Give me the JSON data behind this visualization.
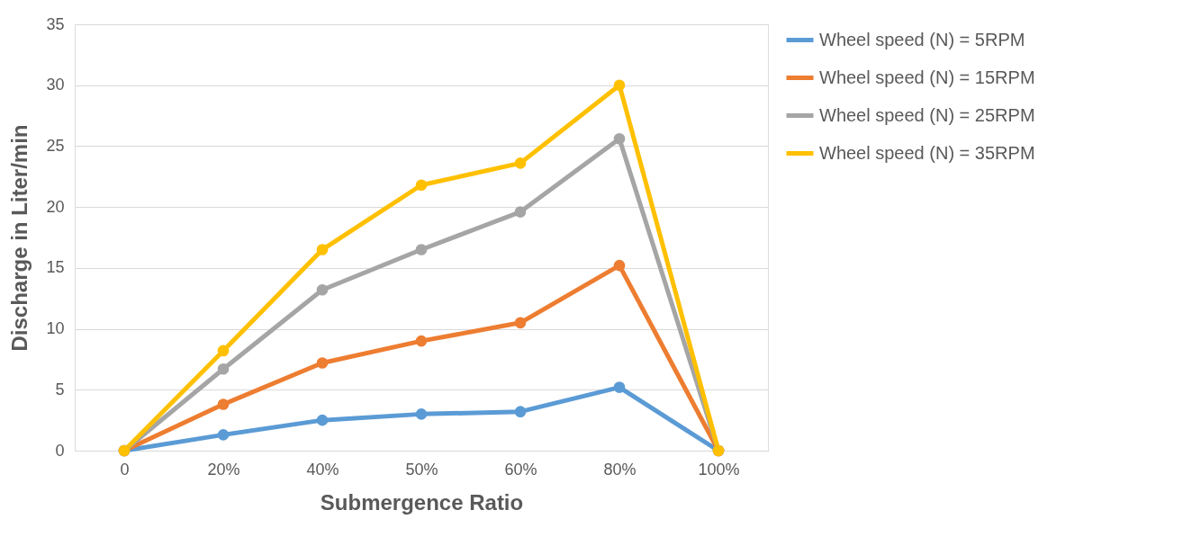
{
  "chart_data": {
    "type": "line",
    "xlabel": "Submergence Ratio",
    "ylabel": "Discharge in Liter/min",
    "categories": [
      "0",
      "20%",
      "40%",
      "50%",
      "60%",
      "80%",
      "100%"
    ],
    "series": [
      {
        "name": "Wheel speed (N) = 5RPM",
        "color": "#5b9bd5",
        "values": [
          0,
          1.3,
          2.5,
          3.0,
          3.2,
          5.2,
          0
        ]
      },
      {
        "name": "Wheel speed (N) = 15RPM",
        "color": "#ed7d31",
        "values": [
          0,
          3.8,
          7.2,
          9.0,
          10.5,
          15.2,
          0
        ]
      },
      {
        "name": "Wheel speed (N) = 25RPM",
        "color": "#a5a5a5",
        "values": [
          0,
          6.7,
          13.2,
          16.5,
          19.6,
          25.6,
          0
        ]
      },
      {
        "name": "Wheel speed (N) = 35RPM",
        "color": "#ffc000",
        "values": [
          0,
          8.2,
          16.5,
          21.8,
          23.6,
          30.0,
          0
        ]
      }
    ],
    "ylim": [
      0,
      35
    ],
    "yticks": [
      0,
      5,
      10,
      15,
      20,
      25,
      30,
      35
    ],
    "grid": "y",
    "legend": "right",
    "marker": "circle",
    "line_style": "solid"
  }
}
